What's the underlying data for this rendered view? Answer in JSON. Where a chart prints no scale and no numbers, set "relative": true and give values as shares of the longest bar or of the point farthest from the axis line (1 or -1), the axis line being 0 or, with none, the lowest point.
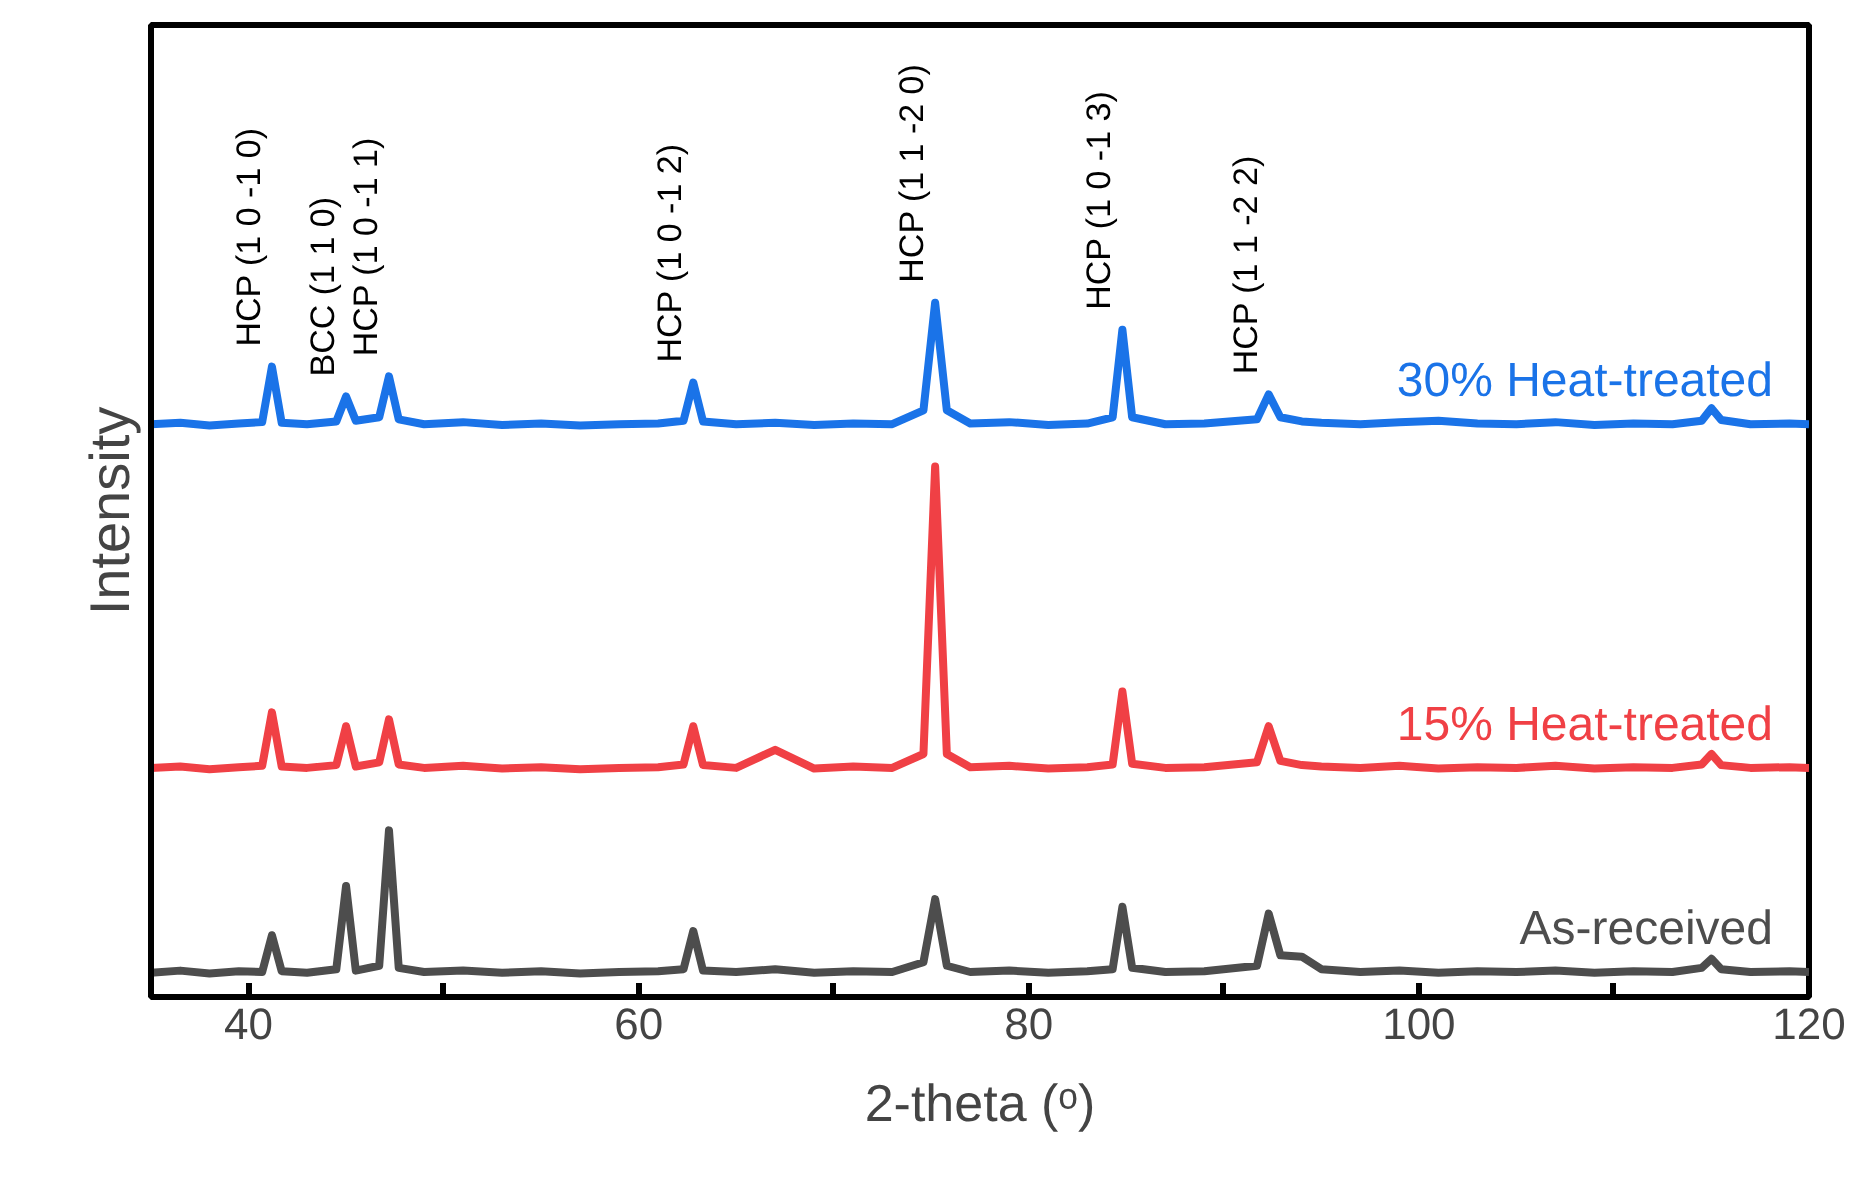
{
  "chart_data": {
    "type": "line",
    "relative": true,
    "xlabel": "2-theta (ᵒ)",
    "ylabel": "Intensity",
    "xlim": [
      35,
      120
    ],
    "xticks": [
      40,
      {
        "value": 50,
        "label": null
      },
      60,
      {
        "value": 70,
        "label": null
      },
      80,
      {
        "value": 90,
        "label": null
      },
      100,
      {
        "value": 110,
        "label": null
      },
      120
    ],
    "x": [
      35,
      36.5,
      38,
      39.5,
      40.7,
      41.2,
      41.7,
      43,
      44.5,
      45.0,
      45.5,
      46.7,
      47.2,
      47.7,
      49,
      51,
      53,
      55,
      57,
      59,
      61,
      62.3,
      62.8,
      63.3,
      65,
      67,
      69,
      71,
      73,
      74.6,
      75.2,
      75.8,
      77,
      79,
      81,
      83,
      84.3,
      84.8,
      85.3,
      87,
      89,
      91.7,
      92.3,
      92.9,
      94,
      95,
      97,
      99,
      101,
      103,
      105,
      107,
      109,
      111,
      113,
      114.5,
      115,
      115.5,
      117,
      119,
      120
    ],
    "series": [
      {
        "name": "As-received",
        "color": "#4d4d4d",
        "values": [
          0.035,
          0.038,
          0.034,
          0.037,
          0.036,
          0.089,
          0.037,
          0.035,
          0.04,
          0.16,
          0.038,
          0.045,
          0.24,
          0.042,
          0.036,
          0.038,
          0.035,
          0.037,
          0.034,
          0.036,
          0.037,
          0.04,
          0.095,
          0.038,
          0.036,
          0.04,
          0.035,
          0.037,
          0.036,
          0.05,
          0.141,
          0.045,
          0.036,
          0.038,
          0.035,
          0.037,
          0.04,
          0.13,
          0.042,
          0.036,
          0.037,
          0.045,
          0.12,
          0.06,
          0.058,
          0.04,
          0.036,
          0.038,
          0.035,
          0.037,
          0.036,
          0.038,
          0.035,
          0.037,
          0.036,
          0.042,
          0.055,
          0.04,
          0.036,
          0.037,
          0.036
        ]
      },
      {
        "name": "15% Heat-treated",
        "color": "#f04045",
        "values": [
          0.33,
          0.332,
          0.328,
          0.331,
          0.333,
          0.41,
          0.332,
          0.33,
          0.334,
          0.39,
          0.332,
          0.338,
          0.4,
          0.335,
          0.33,
          0.333,
          0.329,
          0.331,
          0.328,
          0.33,
          0.331,
          0.335,
          0.39,
          0.334,
          0.33,
          0.356,
          0.329,
          0.332,
          0.33,
          0.35,
          0.764,
          0.35,
          0.331,
          0.333,
          0.329,
          0.331,
          0.335,
          0.44,
          0.336,
          0.33,
          0.331,
          0.338,
          0.39,
          0.34,
          0.334,
          0.332,
          0.33,
          0.333,
          0.329,
          0.331,
          0.33,
          0.333,
          0.329,
          0.331,
          0.33,
          0.335,
          0.35,
          0.334,
          0.33,
          0.331,
          0.33
        ]
      },
      {
        "name": "30% Heat-treated",
        "color": "#1a73e8",
        "values": [
          0.825,
          0.827,
          0.823,
          0.826,
          0.828,
          0.908,
          0.827,
          0.825,
          0.829,
          0.865,
          0.83,
          0.835,
          0.894,
          0.832,
          0.825,
          0.828,
          0.824,
          0.826,
          0.823,
          0.825,
          0.826,
          0.83,
          0.885,
          0.829,
          0.825,
          0.827,
          0.824,
          0.826,
          0.825,
          0.845,
          1.0,
          0.845,
          0.826,
          0.828,
          0.824,
          0.826,
          0.835,
          0.961,
          0.835,
          0.825,
          0.826,
          0.832,
          0.868,
          0.835,
          0.829,
          0.827,
          0.825,
          0.828,
          0.83,
          0.826,
          0.825,
          0.828,
          0.824,
          0.826,
          0.825,
          0.83,
          0.848,
          0.831,
          0.825,
          0.826,
          0.825
        ]
      }
    ],
    "annotations": [
      {
        "text": "HCP (1 0 -1 0)",
        "x": 41.2,
        "y": 0.908
      },
      {
        "text": "BCC (1 1 0)",
        "x": 45.0,
        "y": 0.865
      },
      {
        "text": "HCP (1 0 -1 1)",
        "x": 47.2,
        "y": 0.894
      },
      {
        "text": "HCP (1 0 -1 2)",
        "x": 62.8,
        "y": 0.885
      },
      {
        "text": "HCP (1 1 -2 0)",
        "x": 75.2,
        "y": 1.0
      },
      {
        "text": "HCP (1 0 -1 3)",
        "x": 84.8,
        "y": 0.961
      },
      {
        "text": "HCP (1 1 -2 2)",
        "x": 92.3,
        "y": 0.868
      }
    ]
  }
}
